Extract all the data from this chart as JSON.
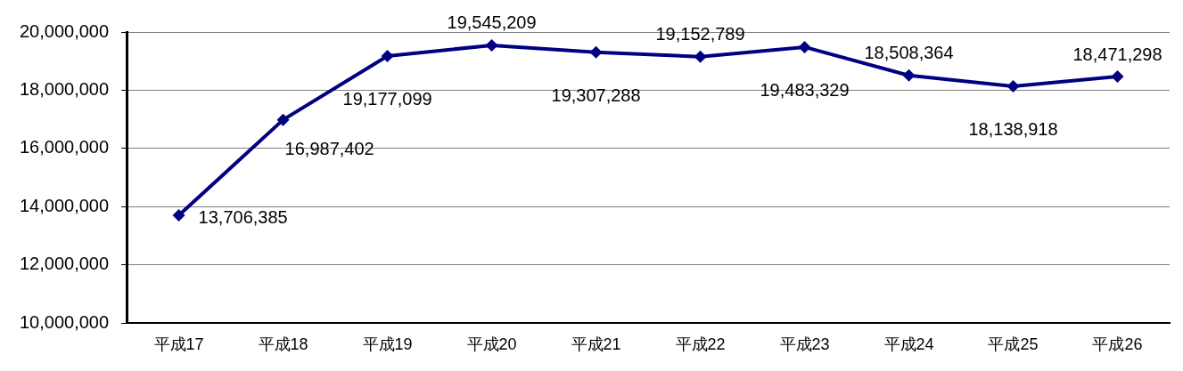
{
  "chart_data": {
    "type": "line",
    "categories": [
      "平成17",
      "平成18",
      "平成19",
      "平成20",
      "平成21",
      "平成22",
      "平成23",
      "平成24",
      "平成25",
      "平成26"
    ],
    "series": [
      {
        "color": "#000080",
        "values": [
          13706385,
          16987402,
          19177099,
          19545209,
          19307288,
          19152789,
          19483329,
          18508364,
          18138918,
          18471298
        ],
        "value_labels": [
          "13,706,385",
          "16,987,402",
          "19,177,099",
          "19,545,209",
          "19,307,288",
          "19,152,789",
          "19,483,329",
          "18,508,364",
          "18,138,918",
          "18,471,298"
        ]
      }
    ],
    "ylim": [
      10000000,
      20000000
    ],
    "yticks": [
      {
        "value": 10000000,
        "label": "10,000,000"
      },
      {
        "value": 12000000,
        "label": "12,000,000"
      },
      {
        "value": 14000000,
        "label": "14,000,000"
      },
      {
        "value": 16000000,
        "label": "16,000,000"
      },
      {
        "value": 18000000,
        "label": "18,000,000"
      },
      {
        "value": 20000000,
        "label": "20,000,000"
      }
    ],
    "grid": "y",
    "legend": false,
    "marker": "diamond",
    "line_style": "solid"
  }
}
